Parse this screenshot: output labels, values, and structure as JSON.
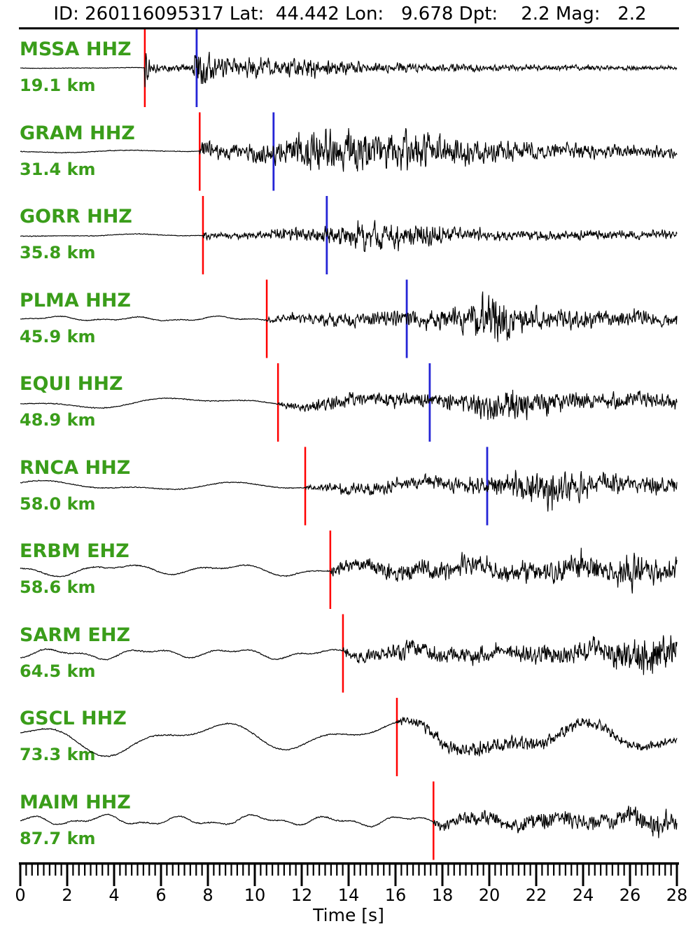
{
  "header": {
    "title": "ID: 260116095317 Lat:  44.442 Lon:   9.678 Dpt:    2.2 Mag:   2.2"
  },
  "colors": {
    "station_label": "#3a9d1a",
    "p_pick": "#ff0000",
    "s_pick": "#2424d6",
    "trace": "#000000",
    "axis": "#000000",
    "background": "#ffffff"
  },
  "axis": {
    "label": "Time [s]",
    "min": 0,
    "max": 28,
    "major_step": 2,
    "minor_step": 0.25,
    "tick_labels": [
      "0",
      "2",
      "4",
      "6",
      "8",
      "10",
      "12",
      "14",
      "16",
      "18",
      "20",
      "22",
      "24",
      "26",
      "28"
    ]
  },
  "chart_data": {
    "type": "line",
    "title": "ID: 260116095317 Lat:  44.442 Lon:   9.678 Dpt:    2.2 Mag:   2.2",
    "xlabel": "Time [s]",
    "xlim": [
      0,
      28
    ],
    "grid": false,
    "legend": "none",
    "pick_legend": {
      "red_line": "P-phase pick",
      "blue_line": "S-phase pick"
    },
    "traces": [
      {
        "station": "MSSA",
        "channel": "HHZ",
        "label": "MSSA HHZ",
        "distance_label": "19.1 km",
        "distance_km": 19.1,
        "p_pick_s": 5.31,
        "s_pick_s": 7.52,
        "seed": 11,
        "lf": {
          "amp": 0.7,
          "period": 6
        },
        "hf_env": [
          [
            0,
            0.4
          ],
          [
            5.29,
            0.4
          ],
          [
            5.33,
            26
          ],
          [
            5.6,
            7
          ],
          [
            6.5,
            5
          ],
          [
            7.3,
            4
          ],
          [
            7.5,
            30
          ],
          [
            7.9,
            22
          ],
          [
            8.6,
            14
          ],
          [
            9.5,
            13
          ],
          [
            10.5,
            15
          ],
          [
            11.5,
            11
          ],
          [
            12.5,
            12
          ],
          [
            13.5,
            9
          ],
          [
            15,
            7
          ],
          [
            17,
            6
          ],
          [
            19,
            5
          ],
          [
            21,
            4
          ],
          [
            24,
            3.5
          ],
          [
            28,
            2.5
          ]
        ]
      },
      {
        "station": "GRAM",
        "channel": "HHZ",
        "label": "GRAM HHZ",
        "distance_label": "31.4 km",
        "distance_km": 31.4,
        "p_pick_s": 7.65,
        "s_pick_s": 10.8,
        "seed": 22,
        "lf": {
          "amp": 2.5,
          "period": 9
        },
        "hf_env": [
          [
            0,
            0.5
          ],
          [
            7.63,
            0.5
          ],
          [
            7.68,
            16
          ],
          [
            8.2,
            12
          ],
          [
            9,
            10
          ],
          [
            10,
            12
          ],
          [
            10.8,
            16
          ],
          [
            11.5,
            22
          ],
          [
            12.5,
            26
          ],
          [
            13.5,
            24
          ],
          [
            14.3,
            30
          ],
          [
            15.2,
            26
          ],
          [
            16,
            30
          ],
          [
            17,
            24
          ],
          [
            18,
            20
          ],
          [
            19.5,
            16
          ],
          [
            21,
            13
          ],
          [
            22.5,
            11
          ],
          [
            24,
            10
          ],
          [
            26,
            9
          ],
          [
            28,
            8
          ]
        ]
      },
      {
        "station": "GORR",
        "channel": "HHZ",
        "label": "GORR HHZ",
        "distance_label": "35.8 km",
        "distance_km": 35.8,
        "p_pick_s": 7.79,
        "s_pick_s": 13.07,
        "seed": 33,
        "lf": {
          "amp": 2.2,
          "period": 7
        },
        "hf_env": [
          [
            0,
            0.5
          ],
          [
            7.78,
            0.5
          ],
          [
            7.82,
            6
          ],
          [
            8.6,
            4
          ],
          [
            9.6,
            4
          ],
          [
            10.5,
            7
          ],
          [
            11.3,
            10
          ],
          [
            12,
            8
          ],
          [
            13.05,
            12
          ],
          [
            13.8,
            14
          ],
          [
            14.8,
            20
          ],
          [
            15.6,
            16
          ],
          [
            16.4,
            20
          ],
          [
            17.2,
            14
          ],
          [
            18,
            11
          ],
          [
            19,
            9
          ],
          [
            20.5,
            8
          ],
          [
            22,
            7
          ],
          [
            24,
            6.5
          ],
          [
            26,
            6
          ],
          [
            28,
            6
          ]
        ]
      },
      {
        "station": "PLMA",
        "channel": "HHZ",
        "label": "PLMA HHZ",
        "distance_label": "45.9 km",
        "distance_km": 45.9,
        "p_pick_s": 10.51,
        "s_pick_s": 16.48,
        "seed": 44,
        "lf": {
          "amp": 4,
          "period": 3.5
        },
        "hf_env": [
          [
            0,
            0.6
          ],
          [
            10.5,
            0.6
          ],
          [
            10.55,
            4
          ],
          [
            11.5,
            6
          ],
          [
            12.5,
            8
          ],
          [
            13.5,
            10
          ],
          [
            14.5,
            11
          ],
          [
            15.5,
            10
          ],
          [
            16.5,
            12
          ],
          [
            17.5,
            13
          ],
          [
            18.5,
            14
          ],
          [
            19.3,
            22
          ],
          [
            19.9,
            34
          ],
          [
            20.6,
            28
          ],
          [
            21.3,
            18
          ],
          [
            22,
            14
          ],
          [
            23,
            12
          ],
          [
            24,
            11
          ],
          [
            25,
            10
          ],
          [
            26,
            12
          ],
          [
            27,
            10
          ],
          [
            28,
            9
          ]
        ]
      },
      {
        "station": "EQUI",
        "channel": "HHZ",
        "label": "EQUI HHZ",
        "distance_label": "48.9 km",
        "distance_km": 48.9,
        "p_pick_s": 10.99,
        "s_pick_s": 17.46,
        "seed": 55,
        "lf": {
          "amp": 9,
          "period": 9
        },
        "hf_env": [
          [
            0,
            0.6
          ],
          [
            10.98,
            0.6
          ],
          [
            11.03,
            4
          ],
          [
            11.8,
            5
          ],
          [
            12.6,
            8
          ],
          [
            13.5,
            10
          ],
          [
            14.5,
            9
          ],
          [
            15.5,
            9
          ],
          [
            16.5,
            10
          ],
          [
            17.45,
            11
          ],
          [
            18.3,
            12
          ],
          [
            19.2,
            14
          ],
          [
            20.2,
            18
          ],
          [
            21,
            24
          ],
          [
            21.8,
            20
          ],
          [
            22.6,
            15
          ],
          [
            23.5,
            13
          ],
          [
            24.5,
            12
          ],
          [
            25.5,
            11
          ],
          [
            26.5,
            10
          ],
          [
            28,
            9
          ]
        ]
      },
      {
        "station": "RNCA",
        "channel": "HHZ",
        "label": "RNCA HHZ",
        "distance_label": "58.0 km",
        "distance_km": 58.0,
        "p_pick_s": 12.15,
        "s_pick_s": 19.91,
        "seed": 66,
        "lf": {
          "amp": 8,
          "period": 8.5
        },
        "hf_env": [
          [
            0,
            0.6
          ],
          [
            12.14,
            0.6
          ],
          [
            12.18,
            3
          ],
          [
            13,
            6
          ],
          [
            14,
            8
          ],
          [
            15,
            8
          ],
          [
            16,
            9
          ],
          [
            17,
            9
          ],
          [
            18,
            10
          ],
          [
            19,
            10
          ],
          [
            19.9,
            12
          ],
          [
            20.8,
            16
          ],
          [
            21.6,
            24
          ],
          [
            22.3,
            28
          ],
          [
            23,
            22
          ],
          [
            23.8,
            17
          ],
          [
            24.6,
            14
          ],
          [
            25.5,
            13
          ],
          [
            26.5,
            12
          ],
          [
            28,
            10
          ]
        ]
      },
      {
        "station": "ERBM",
        "channel": "EHZ",
        "label": "ERBM EHZ",
        "distance_label": "58.6 km",
        "distance_km": 58.6,
        "p_pick_s": 13.22,
        "s_pick_s": null,
        "seed": 77,
        "lf": {
          "amp": 10,
          "period": 5
        },
        "hf_env": [
          [
            0,
            0.8
          ],
          [
            13.21,
            0.8
          ],
          [
            13.26,
            7
          ],
          [
            14,
            9
          ],
          [
            15,
            11
          ],
          [
            16,
            12
          ],
          [
            17,
            13
          ],
          [
            18,
            14
          ],
          [
            19,
            13
          ],
          [
            20,
            14
          ],
          [
            21,
            13
          ],
          [
            22,
            15
          ],
          [
            23,
            17
          ],
          [
            23.8,
            22
          ],
          [
            24.6,
            18
          ],
          [
            25.3,
            16
          ],
          [
            26,
            24
          ],
          [
            26.8,
            20
          ],
          [
            27.4,
            16
          ],
          [
            28,
            14
          ]
        ]
      },
      {
        "station": "SARM",
        "channel": "EHZ",
        "label": "SARM EHZ",
        "distance_label": "64.5 km",
        "distance_km": 64.5,
        "p_pick_s": 13.76,
        "s_pick_s": null,
        "seed": 88,
        "lf": {
          "amp": 9,
          "period": 3.8
        },
        "hf_env": [
          [
            0,
            0.8
          ],
          [
            13.75,
            0.8
          ],
          [
            13.8,
            9
          ],
          [
            14.5,
            8
          ],
          [
            15.5,
            10
          ],
          [
            16.5,
            12
          ],
          [
            17.5,
            13
          ],
          [
            18.5,
            12
          ],
          [
            19.5,
            12
          ],
          [
            20.5,
            11
          ],
          [
            21.5,
            12
          ],
          [
            22.5,
            14
          ],
          [
            23.5,
            15
          ],
          [
            24.5,
            16
          ],
          [
            25.3,
            18
          ],
          [
            26,
            22
          ],
          [
            26.7,
            28
          ],
          [
            27.4,
            24
          ],
          [
            28,
            20
          ]
        ]
      },
      {
        "station": "GSCL",
        "channel": "HHZ",
        "label": "GSCL HHZ",
        "distance_label": "73.3 km",
        "distance_km": 73.3,
        "p_pick_s": 16.06,
        "s_pick_s": null,
        "seed": 99,
        "lf": {
          "amp": 28,
          "period": 8
        },
        "hf_env": [
          [
            0,
            0.8
          ],
          [
            16.05,
            0.8
          ],
          [
            16.1,
            5
          ],
          [
            17,
            7
          ],
          [
            17.8,
            11
          ],
          [
            18.6,
            13
          ],
          [
            19.4,
            11
          ],
          [
            20.2,
            9
          ],
          [
            21,
            10
          ],
          [
            22,
            9
          ],
          [
            23,
            8
          ],
          [
            24,
            8
          ],
          [
            25,
            7
          ],
          [
            26,
            7
          ],
          [
            27,
            6
          ],
          [
            28,
            6
          ]
        ]
      },
      {
        "station": "MAIM",
        "channel": "HHZ",
        "label": "MAIM HHZ",
        "distance_label": "87.7 km",
        "distance_km": 87.7,
        "p_pick_s": 17.62,
        "s_pick_s": null,
        "seed": 110,
        "lf": {
          "amp": 9,
          "period": 3.2
        },
        "hf_env": [
          [
            0,
            0.8
          ],
          [
            17.6,
            0.8
          ],
          [
            17.66,
            6
          ],
          [
            18.5,
            7
          ],
          [
            19.5,
            8
          ],
          [
            20.5,
            9
          ],
          [
            21.5,
            10
          ],
          [
            22.5,
            12
          ],
          [
            23.3,
            14
          ],
          [
            24,
            11
          ],
          [
            25,
            10
          ],
          [
            25.8,
            13
          ],
          [
            26.5,
            15
          ],
          [
            27.2,
            17
          ],
          [
            28,
            14
          ]
        ]
      }
    ]
  }
}
